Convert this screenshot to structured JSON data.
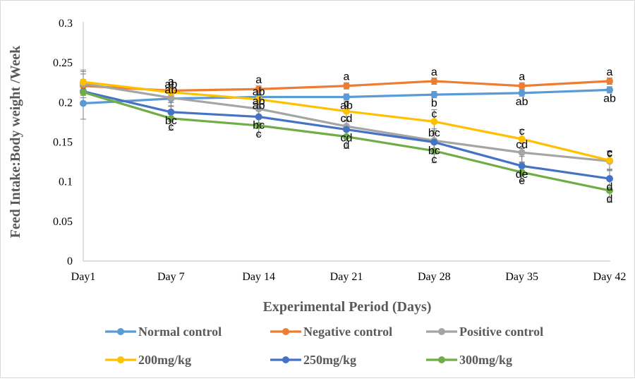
{
  "chart_data": {
    "type": "line",
    "title": "",
    "xlabel": "Experimental Period (Days)",
    "ylabel": "Feed Intake:Body weight /Week",
    "categories": [
      "Day1",
      "Day 7",
      "Day 14",
      "Day 21",
      "Day 28",
      "Day 35",
      "Day 42"
    ],
    "ylim": [
      0,
      0.3
    ],
    "yticks": [
      "0",
      "0.05",
      "0.1",
      "0.15",
      "0.2",
      "0.25",
      "0.3"
    ],
    "grid": false,
    "legend_position": "bottom",
    "series": [
      {
        "name": "Normal control",
        "color": "#5B9BD5",
        "values": [
          0.199,
          0.205,
          0.207,
          0.207,
          0.21,
          0.212,
          0.216
        ],
        "labels": [
          "",
          "",
          "ab",
          "ab",
          "b",
          "ab",
          "ab"
        ],
        "errors": [
          0.02,
          0.005,
          0.004,
          0.004,
          0.004,
          0.004,
          0.004
        ]
      },
      {
        "name": "Negative control",
        "color": "#ED7D31",
        "values": [
          0.221,
          0.215,
          0.217,
          0.221,
          0.227,
          0.221,
          0.227
        ],
        "labels": [
          "",
          "a",
          "a",
          "a",
          "a",
          "a",
          "a"
        ],
        "errors": [
          0.015,
          0.006,
          0.004,
          0.004,
          0.004,
          0.004,
          0.004
        ]
      },
      {
        "name": "Positive control",
        "color": "#A5A5A5",
        "values": [
          0.224,
          0.206,
          0.192,
          0.17,
          0.152,
          0.137,
          0.126
        ],
        "labels": [
          "",
          "ab",
          "ab",
          "cd",
          "bc",
          "cd",
          "c"
        ],
        "errors": [
          0.015,
          0.01,
          0.01,
          0.012,
          0.015,
          0.012,
          0.012
        ]
      },
      {
        "name": "200mg/kg",
        "color": "#FFC000",
        "values": [
          0.226,
          0.213,
          0.204,
          0.189,
          0.176,
          0.154,
          0.127
        ],
        "labels": [
          "",
          "ab",
          "ab",
          "c",
          "c",
          "c",
          "c"
        ],
        "errors": [
          0.015,
          0.01,
          0.01,
          0.012,
          0.015,
          0.012,
          0.012
        ]
      },
      {
        "name": "250mg/kg",
        "color": "#4472C4",
        "values": [
          0.214,
          0.188,
          0.182,
          0.166,
          0.15,
          0.12,
          0.104
        ],
        "labels": [
          "",
          "bc",
          "bc",
          "cd",
          "bc",
          "de",
          "d"
        ],
        "errors": [
          0.015,
          0.012,
          0.01,
          0.012,
          0.015,
          0.012,
          0.012
        ]
      },
      {
        "name": "300mg/kg",
        "color": "#70AD47",
        "values": [
          0.213,
          0.18,
          0.171,
          0.157,
          0.139,
          0.112,
          0.089
        ],
        "labels": [
          "",
          "c",
          "c",
          "d",
          "c",
          "e",
          "d"
        ],
        "errors": [
          0.015,
          0.015,
          0.012,
          0.015,
          0.015,
          0.012,
          0.015
        ]
      }
    ]
  }
}
